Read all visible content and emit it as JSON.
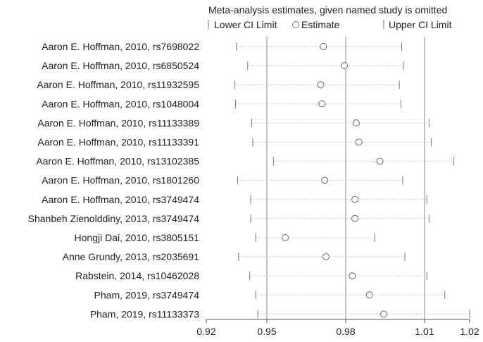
{
  "chart_data": {
    "type": "forest",
    "title": "Meta-analysis estimates, given named study is omitted",
    "legend": [
      "Lower CI Limit",
      "Estimate",
      "Upper CI Limit"
    ],
    "xlim": [
      0.92,
      1.02
    ],
    "x_ticks": [
      "0.92",
      "0.95",
      "0.98",
      "1.01",
      "1.02"
    ],
    "x_tick_values": [
      0.92,
      0.95,
      0.98,
      1.01,
      1.02
    ],
    "reference_lines": [
      0.95,
      0.98,
      1.01
    ],
    "studies": [
      {
        "name": "Aaron E. Hoffman, 2010, rs7698022",
        "lower": 0.935,
        "estimate": 0.9715,
        "upper": 1.0013
      },
      {
        "name": "Aaron E. Hoffman, 2010, rs6850524",
        "lower": 0.9405,
        "estimate": 0.9795,
        "upper": 1.002
      },
      {
        "name": "Aaron E. Hoffman, 2010, rs11932595",
        "lower": 0.934,
        "estimate": 0.9705,
        "upper": 1.0004
      },
      {
        "name": "Aaron E. Hoffman, 2010, rs1048004",
        "lower": 0.9345,
        "estimate": 0.971,
        "upper": 1.001
      },
      {
        "name": "Aaron E. Hoffman, 2010, rs11133389",
        "lower": 0.9425,
        "estimate": 0.984,
        "upper": 1.011
      },
      {
        "name": "Aaron E. Hoffman, 2010, rs11133391",
        "lower": 0.943,
        "estimate": 0.985,
        "upper": 1.0115
      },
      {
        "name": "Aaron E. Hoffman, 2010, rs13102385",
        "lower": 0.9525,
        "estimate": 0.993,
        "upper": 1.0165
      },
      {
        "name": "Aaron E. Hoffman, 2010, rs1801260",
        "lower": 0.9355,
        "estimate": 0.972,
        "upper": 1.0017
      },
      {
        "name": "Aaron E. Hoffman, 2010, rs3749474",
        "lower": 0.942,
        "estimate": 0.9835,
        "upper": 1.0105
      },
      {
        "name": "Shanbeh Zienolddiny, 2013, rs3749474",
        "lower": 0.942,
        "estimate": 0.9835,
        "upper": 1.011
      },
      {
        "name": "Hongji Dai, 2010, rs3805151",
        "lower": 0.9445,
        "estimate": 0.957,
        "upper": 0.991
      },
      {
        "name": "Anne Grundy, 2013, rs2035691",
        "lower": 0.936,
        "estimate": 0.9725,
        "upper": 1.0025
      },
      {
        "name": "Rabstein, 2014, rs10462028",
        "lower": 0.9415,
        "estimate": 0.9825,
        "upper": 1.0105
      },
      {
        "name": "Pham, 2019, rs3749474",
        "lower": 0.9445,
        "estimate": 0.989,
        "upper": 1.0145
      },
      {
        "name": "Pham, 2019, rs11133373",
        "lower": 0.9455,
        "estimate": 0.9945,
        "upper": 1.02
      }
    ]
  }
}
